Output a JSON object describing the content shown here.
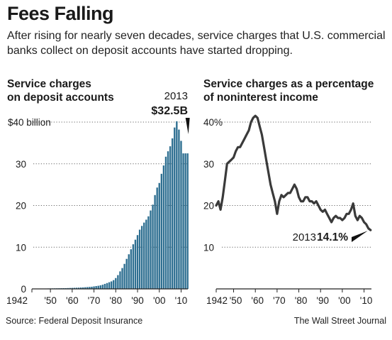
{
  "header": {
    "title": "Fees Falling",
    "subtitle": "After rising for nearly seven decades, service charges that U.S. commercial banks collect on deposit accounts have started dropping."
  },
  "footer": {
    "source": "Source: Federal Deposit Insurance",
    "credit": "The Wall Street Journal"
  },
  "colors": {
    "bar": "#2e6f91",
    "line": "#3a3a3a",
    "grid": "#666666",
    "text": "#1a1a1a"
  },
  "chart_data": [
    {
      "type": "bar",
      "title": "Service charges on deposit accounts",
      "title_lines": [
        "Service charges",
        "on deposit accounts"
      ],
      "xlabel": "",
      "ylabel": "",
      "ylim": [
        0,
        40
      ],
      "ytick_values": [
        0,
        10,
        20,
        30,
        40
      ],
      "ytick_labels": [
        "0",
        "10",
        "20",
        "30",
        "$40 billion"
      ],
      "xtick_labels": [
        "1942",
        "'50",
        "'60",
        "'70",
        "'80",
        "'90",
        "'00",
        "'10"
      ],
      "xtick_years": [
        1942,
        1950,
        1960,
        1970,
        1980,
        1990,
        2000,
        2010
      ],
      "grid": true,
      "annotation": {
        "year_label": "2013",
        "value_label": "$32.5B",
        "year": 2013,
        "value": 32.5
      },
      "x": [
        1942,
        1943,
        1944,
        1945,
        1946,
        1947,
        1948,
        1949,
        1950,
        1951,
        1952,
        1953,
        1954,
        1955,
        1956,
        1957,
        1958,
        1959,
        1960,
        1961,
        1962,
        1963,
        1964,
        1965,
        1966,
        1967,
        1968,
        1969,
        1970,
        1971,
        1972,
        1973,
        1974,
        1975,
        1976,
        1977,
        1978,
        1979,
        1980,
        1981,
        1982,
        1983,
        1984,
        1985,
        1986,
        1987,
        1988,
        1989,
        1990,
        1991,
        1992,
        1993,
        1994,
        1995,
        1996,
        1997,
        1998,
        1999,
        2000,
        2001,
        2002,
        2003,
        2004,
        2005,
        2006,
        2007,
        2008,
        2009,
        2010,
        2011,
        2012,
        2013
      ],
      "values": [
        0.05,
        0.06,
        0.06,
        0.07,
        0.08,
        0.08,
        0.09,
        0.1,
        0.11,
        0.12,
        0.13,
        0.14,
        0.15,
        0.16,
        0.17,
        0.18,
        0.2,
        0.22,
        0.24,
        0.26,
        0.28,
        0.3,
        0.33,
        0.36,
        0.4,
        0.44,
        0.48,
        0.52,
        0.6,
        0.68,
        0.75,
        0.85,
        1.0,
        1.2,
        1.4,
        1.6,
        1.8,
        2.1,
        2.6,
        3.3,
        4.2,
        5.0,
        6.0,
        7.2,
        8.3,
        9.5,
        10.7,
        11.8,
        12.9,
        14.2,
        15.1,
        15.9,
        16.6,
        17.4,
        18.8,
        20.2,
        22.5,
        24.3,
        25.4,
        27.6,
        29.6,
        31.7,
        33.0,
        34.2,
        36.1,
        38.7,
        40.2,
        38.2,
        35.5,
        32.5,
        32.5,
        32.5
      ]
    },
    {
      "type": "line",
      "title": "Service charges as a percentage of noninterest income",
      "title_lines": [
        "Service charges as a percentage",
        "of noninterest income"
      ],
      "xlabel": "",
      "ylabel": "",
      "ylim": [
        0,
        40
      ],
      "ytick_values": [
        0,
        10,
        20,
        30,
        40
      ],
      "ytick_labels": [
        "",
        "10",
        "20",
        "30",
        "40%"
      ],
      "xtick_labels": [
        "1942",
        "'50",
        "'60",
        "'70",
        "'80",
        "'90",
        "'00",
        "'10"
      ],
      "xtick_years": [
        1942,
        1950,
        1960,
        1970,
        1980,
        1990,
        2000,
        2010
      ],
      "grid": true,
      "annotation": {
        "year_label": "2013",
        "value_label": "14.1%",
        "year": 2013,
        "value": 14.1
      },
      "x": [
        1942,
        1943,
        1944,
        1945,
        1946,
        1947,
        1948,
        1949,
        1950,
        1951,
        1952,
        1953,
        1954,
        1955,
        1956,
        1957,
        1958,
        1959,
        1960,
        1961,
        1962,
        1963,
        1964,
        1965,
        1966,
        1967,
        1968,
        1969,
        1970,
        1971,
        1972,
        1973,
        1974,
        1975,
        1976,
        1977,
        1978,
        1979,
        1980,
        1981,
        1982,
        1983,
        1984,
        1985,
        1986,
        1987,
        1988,
        1989,
        1990,
        1991,
        1992,
        1993,
        1994,
        1995,
        1996,
        1997,
        1998,
        1999,
        2000,
        2001,
        2002,
        2003,
        2004,
        2005,
        2006,
        2007,
        2008,
        2009,
        2010,
        2011,
        2012,
        2013
      ],
      "values": [
        20,
        21,
        19,
        22,
        26,
        30,
        30.5,
        31,
        31.5,
        33,
        34,
        34,
        35,
        36,
        37,
        38,
        40,
        41,
        41.5,
        41,
        39,
        37,
        34,
        31,
        28,
        25,
        23,
        21,
        18,
        21,
        22.5,
        22,
        22.5,
        23,
        23,
        24,
        25,
        24,
        22,
        21,
        21,
        22,
        22,
        21,
        21,
        20.5,
        21,
        20,
        19,
        18.5,
        19,
        18,
        17,
        16,
        17,
        17.5,
        17,
        17,
        16.5,
        17,
        18,
        18,
        19,
        20.5,
        17.5,
        16.5,
        17.5,
        17,
        16,
        15.5,
        14.5,
        14.1
      ]
    }
  ]
}
